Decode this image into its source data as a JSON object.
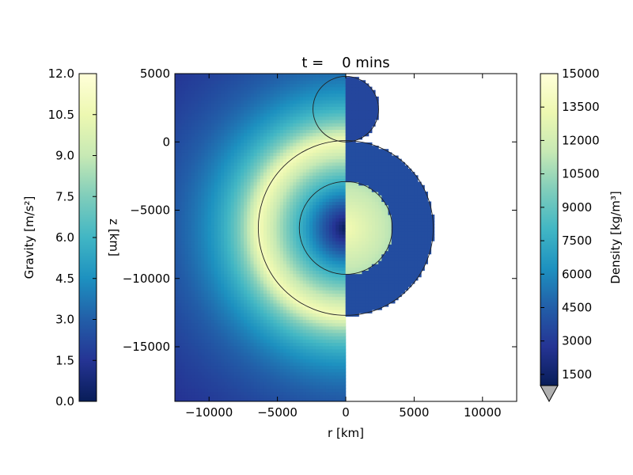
{
  "chart_data": {
    "type": "heatmap",
    "title": "t =    0 mins",
    "xlabel": "r [km]",
    "ylabel": "z [km]",
    "xlim": [
      -12500,
      12500
    ],
    "ylim": [
      -19000,
      5000
    ],
    "x_ticks": [
      -10000,
      -5000,
      0,
      5000,
      10000
    ],
    "x_tick_labels": [
      "−10000",
      "−5000",
      "0",
      "5000",
      "10000"
    ],
    "y_ticks": [
      5000,
      0,
      -5000,
      -10000,
      -15000
    ],
    "y_tick_labels": [
      "5000",
      "0",
      "−5000",
      "−10000",
      "−15000"
    ],
    "left_half": {
      "quantity": "gravity",
      "bodies": [
        {
          "name": "large body",
          "center_z": -6300,
          "radius": 6400,
          "max_gravity": 11.0
        },
        {
          "name": "small body",
          "center_z": 2400,
          "radius": 2400
        }
      ]
    },
    "right_half": {
      "quantity": "density",
      "bodies": [
        {
          "name": "large body mantle",
          "center_z": -6300,
          "radius": 6400,
          "density": 3000
        },
        {
          "name": "large body core",
          "center_z": -6300,
          "radius": 3400,
          "density_center": 13500,
          "density_edge": 10800
        },
        {
          "name": "small body",
          "center_z": 2400,
          "radius": 2400,
          "density": 2700
        }
      ]
    },
    "colorbars": [
      {
        "label": "Gravity [m/s²]",
        "colormap": "YlGnBu_r",
        "range": [
          0,
          12
        ],
        "tick_labels": [
          "12.0",
          "10.5",
          "9.0",
          "7.5",
          "6.0",
          "4.5",
          "3.0",
          "1.5",
          "0.0"
        ],
        "placement": "left"
      },
      {
        "label": "Density [kg/m³]",
        "colormap": "YlGnBu_r",
        "range": [
          0,
          15000
        ],
        "tick_labels": [
          "15000",
          "13500",
          "12000",
          "10500",
          "9000",
          "7500",
          "6000",
          "4500",
          "3000",
          "1500"
        ],
        "extend": "min",
        "placement": "right"
      }
    ]
  }
}
